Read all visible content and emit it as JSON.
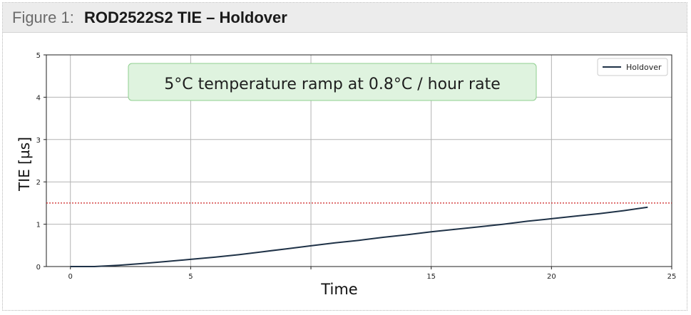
{
  "figure": {
    "label": "Figure 1:",
    "title": "ROD2522S2 TIE – Holdover"
  },
  "colors": {
    "series_line": "#1f3247",
    "threshold_line": "#cc2222",
    "annotation_fill": "#dff3df",
    "annotation_border": "#8fcf8f",
    "grid": "#b3b3b3",
    "header_background": "#ececec"
  },
  "chart_data": {
    "type": "line",
    "xlabel": "Time",
    "ylabel": "TIE [µs]",
    "xlim": [
      -1,
      25
    ],
    "ylim": [
      0,
      5
    ],
    "x_ticks": [
      0,
      5,
      10,
      15,
      20,
      25
    ],
    "x_tick_labels": [
      "0",
      "5",
      "",
      "15",
      "20",
      "25"
    ],
    "y_ticks": [
      0,
      1,
      2,
      3,
      4,
      5
    ],
    "y_tick_labels": [
      "0",
      "1",
      "2",
      "3",
      "4",
      "5"
    ],
    "grid": true,
    "legend_position": "top-right",
    "series": [
      {
        "name": "Holdover",
        "x": [
          0,
          1,
          2,
          3,
          4,
          5,
          6,
          7,
          8,
          9,
          10,
          11,
          12,
          13,
          14,
          15,
          16,
          17,
          18,
          19,
          20,
          21,
          22,
          23,
          24
        ],
        "y": [
          0,
          0.0,
          0.03,
          0.07,
          0.12,
          0.17,
          0.22,
          0.28,
          0.35,
          0.42,
          0.49,
          0.56,
          0.62,
          0.69,
          0.75,
          0.82,
          0.88,
          0.94,
          1.0,
          1.07,
          1.13,
          1.19,
          1.25,
          1.32,
          1.4
        ]
      }
    ],
    "threshold": {
      "y": 1.5,
      "style": "dotted"
    },
    "annotation": {
      "text": "5°C temperature ramp at 0.8°C / hour rate"
    }
  }
}
